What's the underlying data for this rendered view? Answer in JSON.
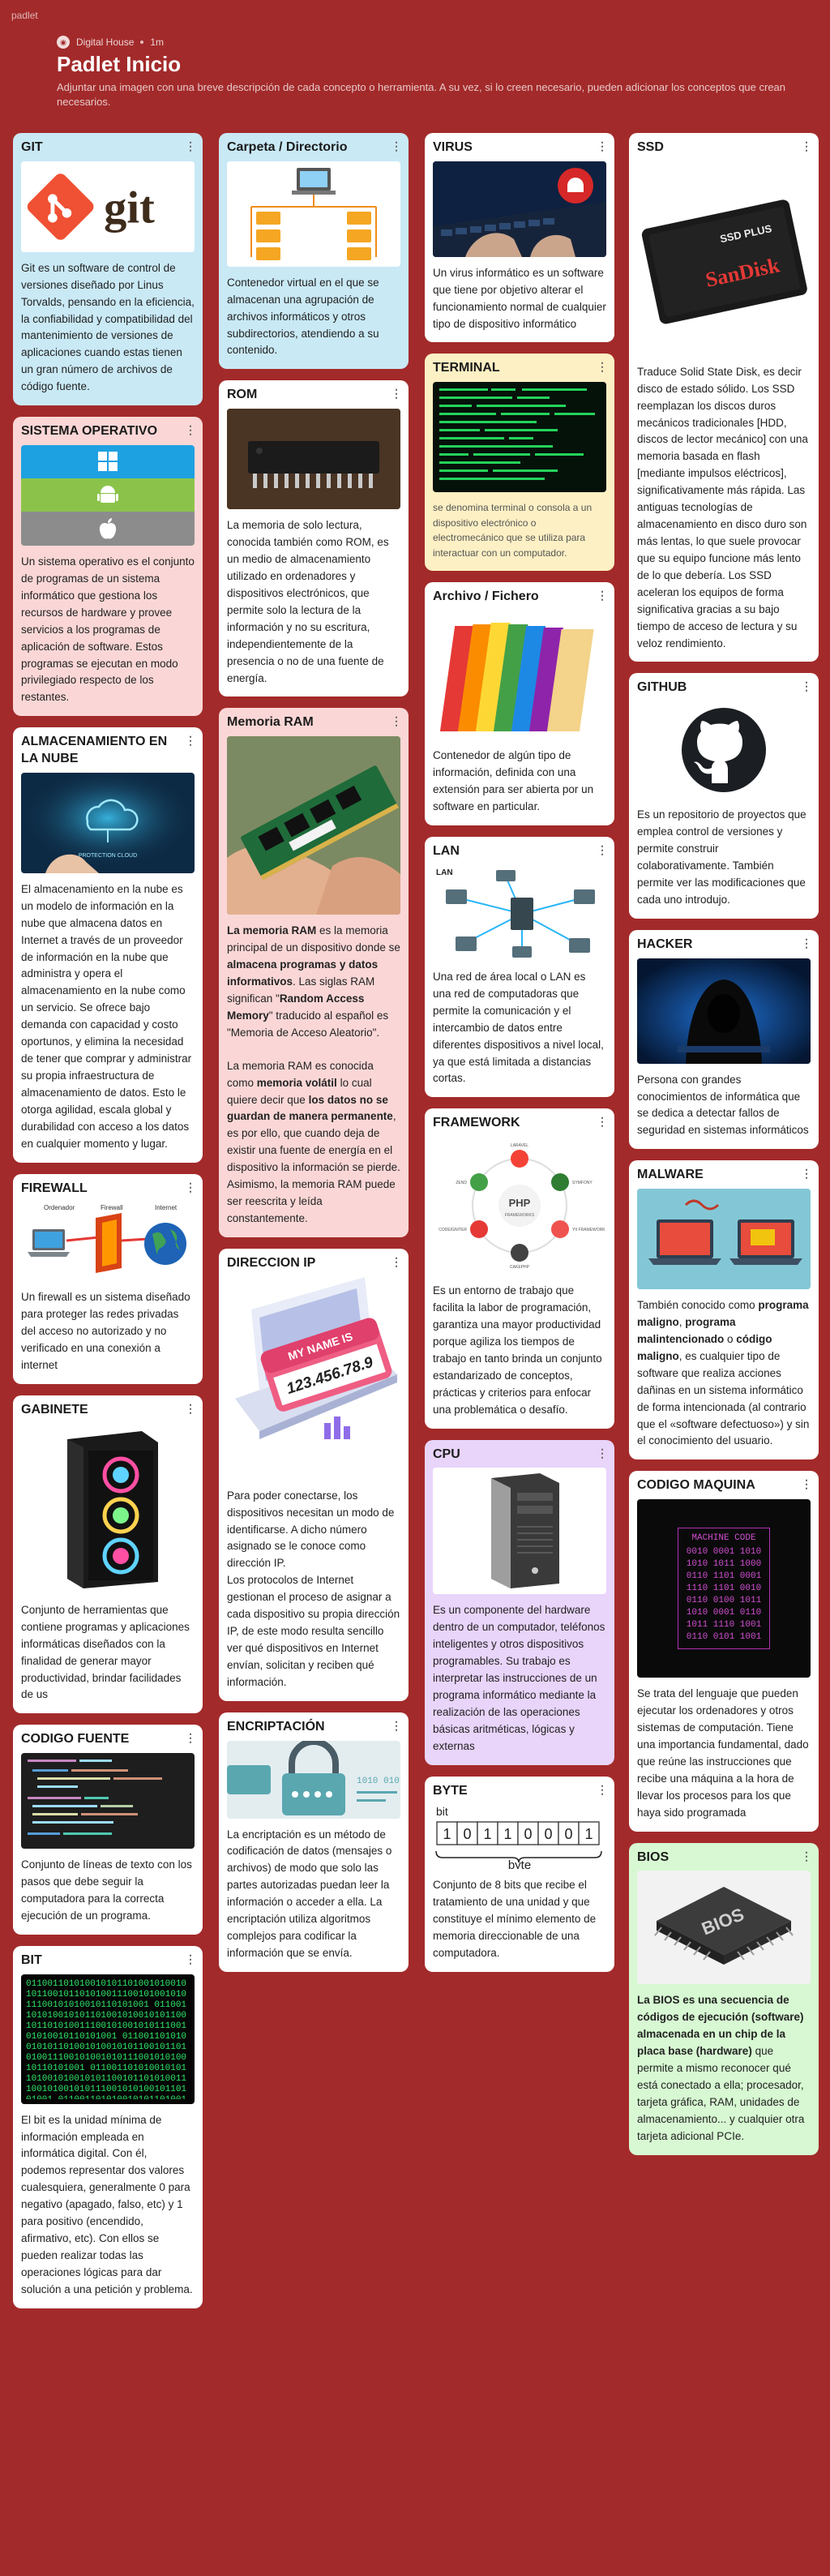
{
  "brand": "padlet",
  "header": {
    "author": "Digital House",
    "age": "1m",
    "title": "Padlet Inicio",
    "description": "Adjuntar una imagen con una breve descripción de cada concepto o herramienta. A su vez, si lo creen necesario, pueden adicionar los conceptos que crean necesarios."
  },
  "menu_glyph": "⋮",
  "cards": {
    "git": {
      "title": "GIT",
      "logo": "git",
      "text": "Git es un software de control de versiones diseñado por Linus Torvalds, pensando en la eficiencia, la confiabilidad y compatibilidad del mantenimiento de versiones de aplicaciones cuando estas tienen un gran número de archivos de código fuente."
    },
    "so": {
      "title": "SISTEMA OPERATIVO",
      "text": "Un sistema operativo es el conjunto de programas de un sistema informático que gestiona los recursos de hardware y provee servicios a los programas de aplicación de software. Estos programas se ejecutan en modo privilegiado respecto de los restantes."
    },
    "nube": {
      "title": "ALMACENAMIENTO EN LA NUBE",
      "img_text": "PROTECTION CLOUD",
      "text": "El almacenamiento en la nube es un modelo de información en la nube que almacena datos en Internet a través de un proveedor de información en la nube que administra y opera el almacenamiento en la nube como un servicio. Se ofrece bajo demanda con capacidad y costo oportunos, y elimina la necesidad de tener que comprar y administrar su propia infraestructura de almacenamiento de datos. Esto le otorga agilidad, escala global y durabilidad con acceso a los datos en cualquier momento y lugar."
    },
    "firewall": {
      "title": "FIREWALL",
      "labels": [
        "Ordenador",
        "Firewall",
        "Internet"
      ],
      "text": "Un firewall es un sistema diseñado para proteger las redes privadas del acceso no autorizado y no verificado en una conexión a internet"
    },
    "gabinete": {
      "title": "GABINETE",
      "text": "Conjunto de herramientas que contiene programas y aplicaciones informáticas diseñados con la finalidad de generar mayor productividad, brindar facilidades de us"
    },
    "codigo_fuente": {
      "title": "CODIGO FUENTE",
      "text": "Conjunto de líneas de texto con los pasos que debe seguir la computadora para la correcta ejecución de un programa."
    },
    "bit": {
      "title": "BIT",
      "binary": "01100110101001010110100101001010110010110101001110010100101011100101010010110101001",
      "text": "El bit es la unidad mínima de información empleada en informática digital. Con él, podemos representar dos valores cualesquiera, generalmente 0 para negativo (apagado, falso, etc) y 1 para positivo (encendido, afirmativo, etc). Con ellos se pueden realizar todas las operaciones lógicas para dar solución a una petición y problema."
    },
    "carpeta": {
      "title": "Carpeta / Directorio",
      "text": "Contenedor virtual en el que se almacenan una agrupación de archivos informáticos y otros subdirectorios, atendiendo a su contenido."
    },
    "rom": {
      "title": "ROM",
      "text": "La memoria de solo lectura, conocida también como ROM, es un medio de almacenamiento utilizado en ordenadores y dispositivos electrónicos, que permite solo la lectura de la información y no su escritura, independientemente de la presencia o no de una fuente de energía."
    },
    "ram": {
      "title": "Memoria RAM",
      "p1": [
        {
          "t": "La memoria RAM",
          "b": true
        },
        {
          "t": " es la memoria principal de un dispositivo donde se ",
          "b": false
        },
        {
          "t": "almacena programas y datos informativos",
          "b": true
        },
        {
          "t": ". Las siglas RAM significan \"",
          "b": false
        },
        {
          "t": "Random Access Memory",
          "b": true
        },
        {
          "t": "\" traducido al español es \"Memoria de Acceso Aleatorio\".",
          "b": false
        }
      ],
      "p2": [
        {
          "t": "La memoria RAM es conocida como ",
          "b": false
        },
        {
          "t": "memoria volátil",
          "b": true
        },
        {
          "t": " lo cual quiere decir que ",
          "b": false
        },
        {
          "t": "los datos no se guardan de manera permanente",
          "b": true
        },
        {
          "t": ", es por ello, que cuando deja de existir una fuente de energía en el dispositivo la información se pierde. Asimismo, la memoria RAM puede ser reescrita y leída constantemente.",
          "b": false
        }
      ]
    },
    "ip": {
      "title": "DIRECCION IP",
      "img_line1": "MY NAME IS",
      "img_line2": "123.456.78.9",
      "text": "Para poder conectarse, los dispositivos necesitan un modo de identificarse. A dicho número asignado se le conoce como dirección IP.\nLos protocolos de Internet gestionan el proceso de asignar a cada dispositivo su propia dirección IP, de este modo resulta sencillo ver qué dispositivos en Internet envían, solicitan y reciben qué información."
    },
    "encriptacion": {
      "title": "ENCRIPTACIÓN",
      "img_text": "1010 0101",
      "text": "La encriptación es un método de codificación de datos (mensajes o archivos) de modo que solo las partes autorizadas puedan leer la información o acceder a ella. La encriptación utiliza algoritmos complejos para codificar la información que se envía."
    },
    "virus": {
      "title": "VIRUS",
      "text": "Un virus informático es un software que tiene por objetivo alterar el funcionamiento normal de cualquier tipo de dispositivo informático"
    },
    "terminal": {
      "title": "TERMINAL",
      "text": "se denomina terminal o consola a un dispositivo electrónico o electromecánico que se utiliza para interactuar con un computador."
    },
    "archivo": {
      "title": "Archivo / Fichero",
      "text": "Contenedor de algún tipo de información, definida con una extensión para ser abierta por un software en particular."
    },
    "lan": {
      "title": "LAN",
      "img_label": "LAN",
      "text": "Una red de área local o LAN es una red de computadoras que permite la comunicación y el intercambio de datos entre diferentes dispositivos a nivel local, ya que está limitada a distancias cortas."
    },
    "framework": {
      "title": "FRAMEWORK",
      "img_center": "PHP",
      "img_center_sub": "FRAMEWORKS",
      "nodes": [
        "LARAVEL",
        "SYMFONY",
        "YII FRAMEWORK",
        "CAKEPHP",
        "CODEIGNITER",
        "ZEND"
      ],
      "text": "Es un entorno de trabajo que facilita la labor de programación, garantiza una mayor productividad porque agiliza los tiempos de trabajo en tanto brinda un conjunto estandarizado de conceptos, prácticas y criterios para enfocar una problemática o desafío."
    },
    "cpu": {
      "title": "CPU",
      "text": "Es un componente del hardware dentro de un computador, teléfonos inteligentes y otros dispositivos programables. Su trabajo es interpretar las instrucciones de un programa informático mediante la realización de las operaciones básicas aritméticas, lógicas y externas"
    },
    "byte": {
      "title": "BYTE",
      "bit_label": "bit",
      "byte_label": "byte",
      "bits": [
        "1",
        "0",
        "1",
        "1",
        "0",
        "0",
        "0",
        "1"
      ],
      "text": "Conjunto de 8 bits que recibe el tratamiento de una unidad y que constituye el mínimo elemento de memoria direccionable de una computadora."
    },
    "ssd": {
      "title": "SSD",
      "img_top": "SSD PLUS",
      "img_brand": "SanDisk",
      "text": "Traduce Solid State Disk, es decir disco de estado sólido. Los SSD reemplazan los discos duros mecánicos tradicionales [HDD, discos de lector mecánico] con una memoria basada en flash [mediante impulsos eléctricos], significativamente más rápida. Las antiguas tecnologías de almacenamiento en disco duro son más lentas, lo que suele provocar que su equipo funcione más lento de lo que debería. Los SSD aceleran los equipos de forma significativa gracias a su bajo tiempo de acceso de lectura y su veloz rendimiento."
    },
    "github": {
      "title": "GITHUB",
      "text": "Es un repositorio de proyectos que emplea control de versiones y permite construir colaborativamente. También permite ver las modificaciones que cada uno introdujo."
    },
    "hacker": {
      "title": "HACKER",
      "text": "Persona con grandes conocimientos de informática que se dedica a detectar fallos de seguridad en sistemas informáticos"
    },
    "malware": {
      "title": "MALWARE",
      "parts": [
        {
          "t": "También conocido como ",
          "b": false
        },
        {
          "t": "programa maligno",
          "b": true
        },
        {
          "t": ", ",
          "b": false
        },
        {
          "t": "programa malintencionado",
          "b": true
        },
        {
          "t": " o ",
          "b": false
        },
        {
          "t": "código maligno",
          "b": true
        },
        {
          "t": ", es cualquier tipo de software que realiza acciones dañinas en un sistema informático de forma intencionada (al contrario que el «software defectuoso») y sin el conocimiento del usuario.",
          "b": false
        }
      ]
    },
    "maquina": {
      "title": "CODIGO MAQUINA",
      "img_title": "MACHINE CODE",
      "rows": [
        "0010 0001 1010",
        "1010 1011 1000",
        "0110 1101 0001",
        "1110 1101 0010",
        "0110 0100 1011",
        "1010 0001 0110",
        "1011 1110 1001",
        "0110 0101 1001"
      ],
      "text": "Se trata del lenguaje que pueden ejecutar los ordenadores y otros sistemas de computación. Tiene una importancia fundamental, dado que reúne las instrucciones que recibe una máquina a la hora de llevar los procesos para los que haya sido programada"
    },
    "bios": {
      "title": "BIOS",
      "img_text": "BIOS",
      "parts": [
        {
          "t": "La BIOS es una secuencia de códigos de ejecución (software) almacenada en un chip de la placa base (hardware)",
          "b": true
        },
        {
          "t": " que permite a mismo reconocer qué está conectado a ella; procesador, tarjeta gráfica, RAM, unidades de almacenamiento... y cualquier otra tarjeta adicional PCIe.",
          "b": false
        }
      ]
    }
  },
  "colors": {
    "background": "#a32a2a",
    "blue": "#c9e9f5",
    "pink": "#fad7d6",
    "yellow": "#fdf0c4",
    "purple": "#e9d4fa",
    "green": "#d7f8d2"
  }
}
